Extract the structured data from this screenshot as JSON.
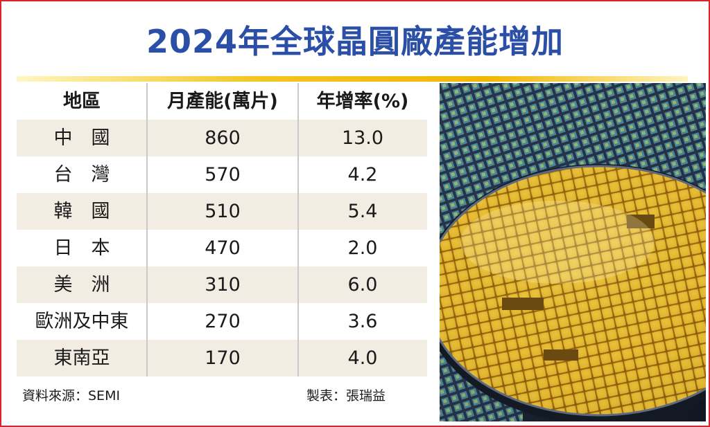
{
  "title": "2024年全球晶圓廠產能增加",
  "table": {
    "headers": [
      "地區",
      "月產能(萬片)",
      "年增率(%)"
    ],
    "rows": [
      {
        "region": "中　國",
        "capacity": "860",
        "growth": "13.0"
      },
      {
        "region": "台　灣",
        "capacity": "570",
        "growth": "4.2"
      },
      {
        "region": "韓　國",
        "capacity": "510",
        "growth": "5.4"
      },
      {
        "region": "日　本",
        "capacity": "470",
        "growth": "2.0"
      },
      {
        "region": "美　洲",
        "capacity": "310",
        "growth": "6.0"
      },
      {
        "region": "歐洲及中東",
        "capacity": "270",
        "growth": "3.6"
      },
      {
        "region": "東南亞",
        "capacity": "170",
        "growth": "4.0"
      }
    ]
  },
  "footer": {
    "source": "資料來源：SEMI",
    "credit": "製表：張瑞益"
  },
  "chart_data": {
    "type": "table",
    "title": "2024年全球晶圓廠產能增加",
    "columns": [
      "地區",
      "月產能(萬片)",
      "年增率(%)"
    ],
    "categories": [
      "中　國",
      "台　灣",
      "韓　國",
      "日　本",
      "美　洲",
      "歐洲及中東",
      "東南亞"
    ],
    "series": [
      {
        "name": "月產能(萬片)",
        "values": [
          860,
          570,
          510,
          470,
          310,
          270,
          170
        ]
      },
      {
        "name": "年增率(%)",
        "values": [
          13.0,
          4.2,
          5.4,
          2.0,
          6.0,
          3.6,
          4.0
        ]
      }
    ]
  },
  "colors": {
    "title": "#2b4fa6",
    "border": "#d9232d",
    "row_shade": "#f2ece3",
    "rule_gold": "#f2b600"
  },
  "photo": {
    "icon": "silicon-wafer-photo"
  }
}
